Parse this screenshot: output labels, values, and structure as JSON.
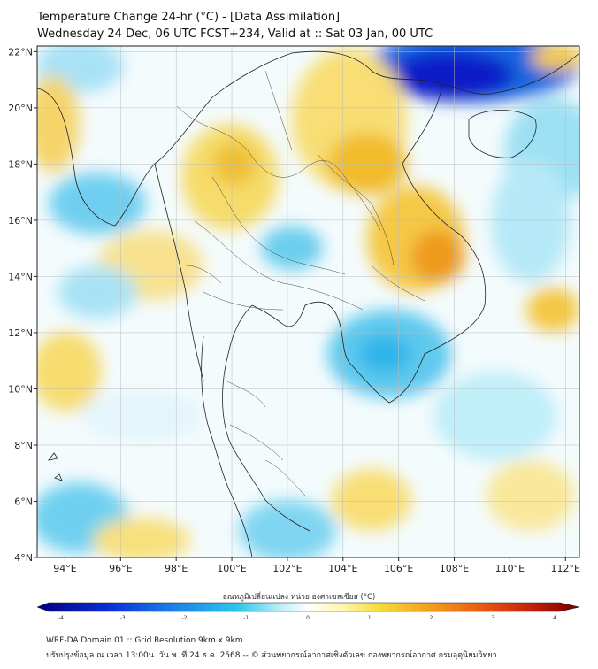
{
  "header": {
    "title": "Temperature Change 24-hr (°C) - [Data Assimilation]",
    "subtitle": "Wednesday 24 Dec, 06 UTC FCST+234, Valid at :: Sat 03 Jan, 00 UTC"
  },
  "map": {
    "lon_range": [
      93,
      112.5
    ],
    "lat_range": [
      4,
      22.2
    ],
    "lon_ticks": [
      "94°E",
      "96°E",
      "98°E",
      "100°E",
      "102°E",
      "104°E",
      "106°E",
      "108°E",
      "110°E",
      "112°E"
    ],
    "lat_ticks": [
      "22°N",
      "20°N",
      "18°N",
      "16°N",
      "14°N",
      "12°N",
      "10°N",
      "8°N",
      "6°N",
      "4°N"
    ]
  },
  "colorbar": {
    "title": "อุณหภูมิเปลี่ยนแปลง หน่วย องศาเซลเซียส (°C)",
    "labels": [
      "-4",
      "-3",
      "-2",
      "-1",
      "0",
      "1",
      "2",
      "3",
      "4"
    ],
    "colors": {
      "cold_extreme": "#00007a",
      "cold": "#1aa7e8",
      "neutral": "#ffffff",
      "warm": "#f5c400",
      "hot_extreme": "#7a0000"
    }
  },
  "footer": {
    "line1": "WRF-DA Domain 01 :: Grid Resolution 9km x 9km",
    "line2": "ปรับปรุงข้อมูล ณ เวลา 13:00น. วัน พ. ที่ 24 ธ.ค. 2568 -- © ส่วนพยากรณ์อากาศเชิงตัวเลข กองพยากรณ์อากาศ กรมอุตุนิยมวิทยา"
  }
}
